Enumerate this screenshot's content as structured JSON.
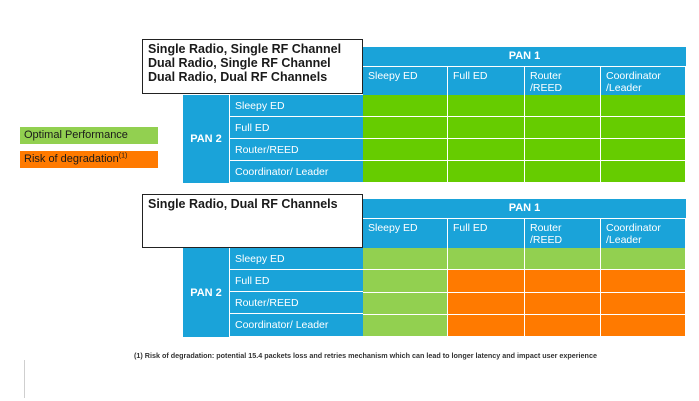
{
  "legend": {
    "optimal": "Optimal Performance",
    "risk": "Risk of degradation",
    "risk_sup": "(1)"
  },
  "colors": {
    "blue": "#1aa3d9",
    "green": "#66cc00",
    "light_green": "#92d050",
    "orange": "#ff7a00"
  },
  "table1": {
    "config_lines": [
      "Single Radio, Single RF Channel",
      "Dual Radio,  Single RF Channel",
      "Dual Radio,  Dual RF Channels"
    ],
    "pan1_label": "PAN 1",
    "pan2_label": "PAN 2",
    "columns": [
      [
        "Sleepy ED"
      ],
      [
        "Full ED"
      ],
      [
        "Router",
        "/REED"
      ],
      [
        "Coordinator",
        "/Leader"
      ]
    ],
    "rows": [
      "Sleepy ED",
      "Full ED",
      "Router/REED",
      "Coordinator/ Leader"
    ],
    "cells": [
      [
        "green",
        "green",
        "green",
        "green"
      ],
      [
        "green",
        "green",
        "green",
        "green"
      ],
      [
        "green",
        "green",
        "green",
        "green"
      ],
      [
        "green",
        "green",
        "green",
        "green"
      ]
    ]
  },
  "table2": {
    "config_lines": [
      "Single Radio, Dual RF Channels"
    ],
    "pan1_label": "PAN 1",
    "pan2_label": "PAN 2",
    "columns": [
      [
        "Sleepy ED"
      ],
      [
        "Full ED"
      ],
      [
        "Router",
        "/REED"
      ],
      [
        "Coordinator",
        "/Leader"
      ]
    ],
    "rows": [
      "Sleepy ED",
      "Full ED",
      "Router/REED",
      "Coordinator/ Leader"
    ],
    "cells": [
      [
        "light_green",
        "light_green",
        "light_green",
        "light_green"
      ],
      [
        "light_green",
        "orange",
        "orange",
        "orange"
      ],
      [
        "light_green",
        "orange",
        "orange",
        "orange"
      ],
      [
        "light_green",
        "orange",
        "orange",
        "orange"
      ]
    ]
  },
  "footnote": "(1)  Risk of degradation:  potential 15.4 packets loss and retries mechanism which can lead to longer latency and impact user experience"
}
